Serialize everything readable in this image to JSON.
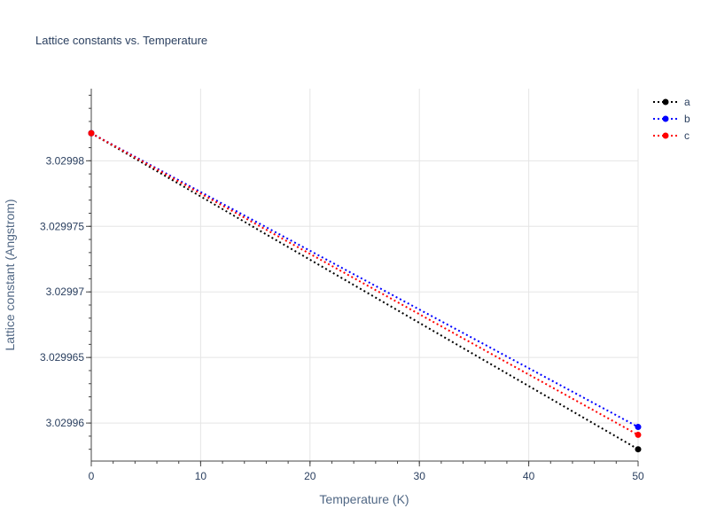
{
  "chart_data": {
    "type": "line",
    "title": "Lattice constants vs. Temperature",
    "xlabel": "Temperature (K)",
    "ylabel": "Lattice constant (Angstrom)",
    "x": [
      0,
      50
    ],
    "xlim": [
      0,
      50
    ],
    "ylim": [
      3.0299571,
      3.0299855
    ],
    "x_ticks": [
      0,
      10,
      20,
      30,
      40,
      50
    ],
    "x_tick_labels": [
      "0",
      "10",
      "20",
      "30",
      "40",
      "50"
    ],
    "y_ticks": [
      3.02996,
      3.029965,
      3.02997,
      3.029975,
      3.02998
    ],
    "y_tick_labels": [
      "3.02996",
      "3.029965",
      "3.02997",
      "3.029975",
      "3.02998"
    ],
    "grid": true,
    "legend": "top-right",
    "series": [
      {
        "name": "a",
        "color": "#000000",
        "values": [
          3.0299821,
          3.029958
        ]
      },
      {
        "name": "b",
        "color": "#0000ff",
        "values": [
          3.0299821,
          3.0299597
        ]
      },
      {
        "name": "c",
        "color": "#ff0000",
        "values": [
          3.0299821,
          3.0299591
        ]
      }
    ]
  }
}
